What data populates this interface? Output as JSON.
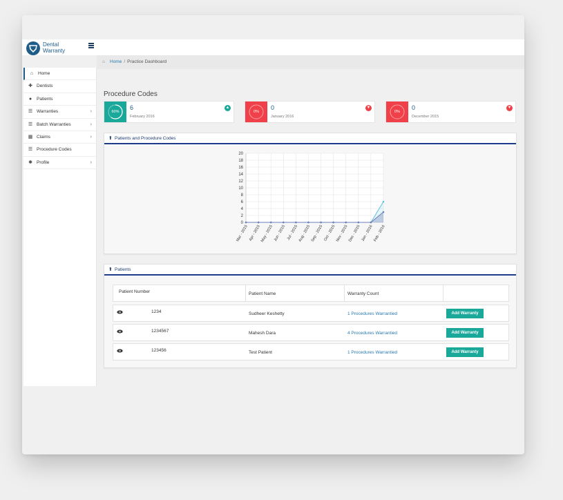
{
  "app": {
    "logo_line1": "Dental",
    "logo_line2": "Warranty",
    "brand_color": "#1e5d8a",
    "menu_icon": "hamburger-icon"
  },
  "breadcrumb": {
    "home": "Home",
    "separator": "/",
    "current": "Practice Dashboard",
    "icon": "home-icon"
  },
  "sidebar": {
    "items": [
      {
        "label": "Home",
        "icon": "home-icon",
        "active": true
      },
      {
        "label": "Dentists",
        "icon": "plus-icon"
      },
      {
        "label": "Patients",
        "icon": "user-icon"
      },
      {
        "label": "Warranties",
        "icon": "list-icon",
        "has_submenu": true
      },
      {
        "label": "Batch Warranties",
        "icon": "list-icon",
        "has_submenu": true
      },
      {
        "label": "Claims",
        "icon": "grid-icon",
        "has_submenu": true
      },
      {
        "label": "Procedure Codes",
        "icon": "list-icon"
      },
      {
        "label": "Profile",
        "icon": "gear-icon",
        "has_submenu": true
      }
    ]
  },
  "dashboard": {
    "title": "Procedure Codes",
    "stats": [
      {
        "percent": "60%",
        "percent_value": 60,
        "value": "6",
        "period": "February 2016",
        "color": "#1aa89a",
        "trend": "thumbs-up-icon"
      },
      {
        "percent": "0%",
        "percent_value": 0,
        "value": "0",
        "period": "January 2016",
        "color": "#f0414a",
        "trend": "thumbs-down-icon"
      },
      {
        "percent": "0%",
        "percent_value": 0,
        "value": "0",
        "period": "December 2015",
        "color": "#f0414a",
        "trend": "thumbs-down-icon"
      }
    ]
  },
  "chart_panel": {
    "title": "Patients and Procedure Codes"
  },
  "chart_data": {
    "type": "line",
    "title": "",
    "xlabel": "",
    "ylabel": "",
    "ylim": [
      0,
      20
    ],
    "yticks": [
      0,
      2,
      4,
      6,
      8,
      10,
      12,
      14,
      16,
      18,
      20
    ],
    "categories": [
      "Mar - 2015",
      "Apr - 2015",
      "May - 2015",
      "Jun - 2015",
      "Jul - 2015",
      "Aug - 2015",
      "Sep - 2015",
      "Oct - 2015",
      "Nov - 2015",
      "Dec - 2015",
      "Jan - 2016",
      "Feb - 2016"
    ],
    "series": [
      {
        "values": [
          0,
          0,
          0,
          0,
          0,
          0,
          0,
          0,
          0,
          0,
          0,
          6
        ],
        "color": "#5bc0de"
      },
      {
        "values": [
          0,
          0,
          0,
          0,
          0,
          0,
          0,
          0,
          0,
          0,
          0,
          3
        ],
        "color": "#6b7fb8"
      }
    ],
    "grid": true
  },
  "patients_panel": {
    "title": "Patients",
    "columns": [
      "Patient Number",
      "Patient Name",
      "Warranty Count"
    ],
    "rows": [
      {
        "number": "1234",
        "name": "Sudheer Keshetty",
        "warranty": "1 Procedures Warrantied",
        "action": "Add Warranty"
      },
      {
        "number": "1234567",
        "name": "Mahesh Dara",
        "warranty": "4 Procedures Warrantied",
        "action": "Add Warranty"
      },
      {
        "number": "123456",
        "name": "Test Patient",
        "warranty": "1 Procedures Warrantied",
        "action": "Add Warranty"
      }
    ]
  }
}
